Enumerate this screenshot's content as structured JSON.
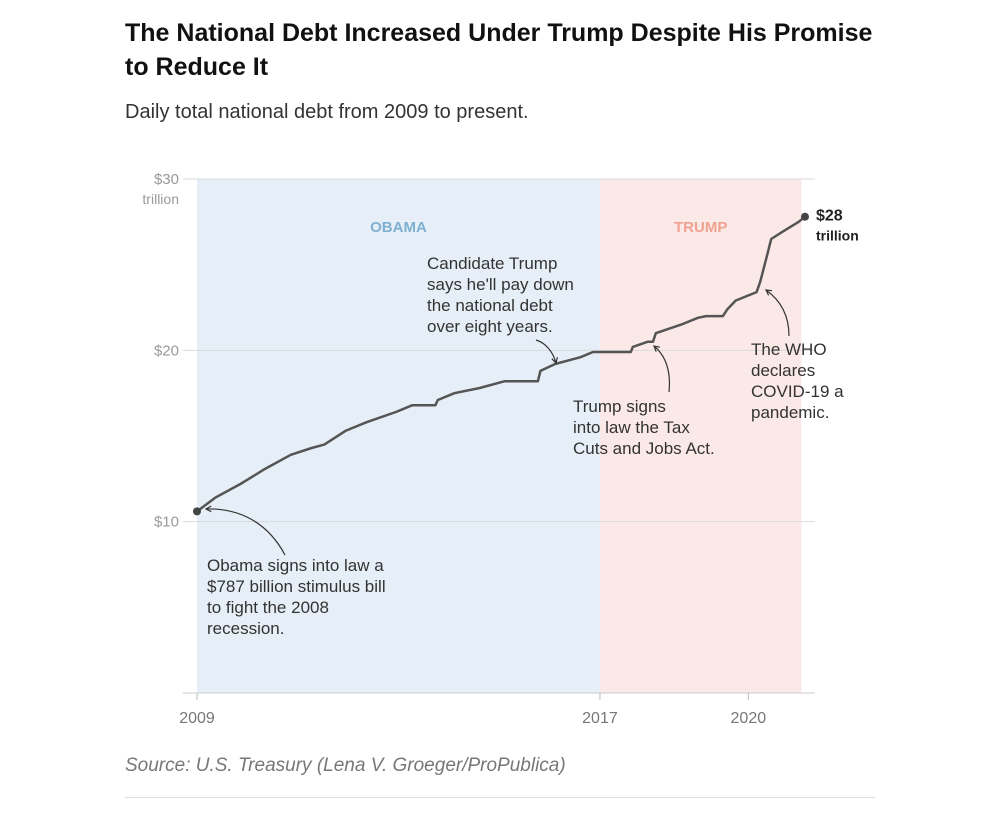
{
  "title": "The National Debt Increased Under Trump Despite His Promise to Reduce It",
  "subtitle": "Daily total national debt from 2009 to present.",
  "source": "Source: U.S. Treasury (Lena V. Groeger/ProPublica)",
  "chart_data": {
    "type": "line",
    "y_unit": "trillion",
    "ylim": [
      0,
      30
    ],
    "xlim": [
      "2009-01-20",
      "2021-02-15"
    ],
    "y_ticks": [
      {
        "value": 30,
        "label": "$30"
      },
      {
        "value": 20,
        "label": "$20"
      },
      {
        "value": 10,
        "label": "$10"
      }
    ],
    "y_tick_unit_label": "trillion",
    "x_ticks": [
      {
        "value": "2009-01-20",
        "label": "2009"
      },
      {
        "value": "2017-01-20",
        "label": "2017"
      },
      {
        "value": "2020-01-01",
        "label": "2020"
      }
    ],
    "grid": true,
    "regions": [
      {
        "label": "OBAMA",
        "start": "2009-01-20",
        "end": "2017-01-20",
        "color": "#e6eff7",
        "label_color": "#7fb0d2"
      },
      {
        "label": "TRUMP",
        "start": "2017-01-20",
        "end": "2021-01-20",
        "color": "#fbe9e7",
        "label_color": "#f0a291"
      }
    ],
    "series": [
      {
        "color": "#555555",
        "points": [
          [
            "2009-01-20",
            10.6
          ],
          [
            "2009-06-01",
            11.4
          ],
          [
            "2009-12-01",
            12.2
          ],
          [
            "2010-06-01",
            13.1
          ],
          [
            "2010-12-01",
            13.9
          ],
          [
            "2011-05-01",
            14.3
          ],
          [
            "2011-08-01",
            14.5
          ],
          [
            "2012-01-01",
            15.3
          ],
          [
            "2012-06-01",
            15.8
          ],
          [
            "2013-01-01",
            16.4
          ],
          [
            "2013-05-01",
            16.8
          ],
          [
            "2013-10-15",
            16.8
          ],
          [
            "2013-11-01",
            17.1
          ],
          [
            "2014-03-01",
            17.5
          ],
          [
            "2014-09-01",
            17.8
          ],
          [
            "2015-03-01",
            18.2
          ],
          [
            "2015-10-28",
            18.2
          ],
          [
            "2015-11-15",
            18.8
          ],
          [
            "2016-03-01",
            19.2
          ],
          [
            "2016-09-01",
            19.6
          ],
          [
            "2016-12-01",
            19.9
          ],
          [
            "2017-01-20",
            19.9
          ],
          [
            "2017-09-01",
            19.9
          ],
          [
            "2017-09-15",
            20.2
          ],
          [
            "2017-12-31",
            20.5
          ],
          [
            "2018-02-09",
            20.5
          ],
          [
            "2018-03-01",
            21.0
          ],
          [
            "2018-09-01",
            21.5
          ],
          [
            "2018-12-31",
            21.9
          ],
          [
            "2019-03-01",
            22.0
          ],
          [
            "2019-07-01",
            22.0
          ],
          [
            "2019-08-02",
            22.4
          ],
          [
            "2019-10-01",
            22.9
          ],
          [
            "2019-12-31",
            23.2
          ],
          [
            "2020-03-01",
            23.4
          ],
          [
            "2020-03-27",
            24.0
          ],
          [
            "2020-05-15",
            25.5
          ],
          [
            "2020-06-15",
            26.5
          ],
          [
            "2020-09-01",
            26.9
          ],
          [
            "2020-12-31",
            27.5
          ],
          [
            "2021-02-15",
            27.8
          ]
        ]
      }
    ],
    "end_label": {
      "value": "$28",
      "unit": "trillion"
    },
    "annotations": [
      {
        "lines": [
          "Obama signs into law a",
          "$787 billion stimulus bill",
          "to fight the 2008",
          "recession."
        ],
        "point": [
          "2009-02-17",
          10.7
        ]
      },
      {
        "lines": [
          "Candidate Trump",
          "says he'll pay down",
          "the national debt",
          "over eight years."
        ],
        "point": [
          "2016-04-01",
          19.3
        ]
      },
      {
        "lines": [
          "Trump signs",
          "into law the Tax",
          "Cuts and Jobs Act."
        ],
        "point": [
          "2017-12-22",
          20.4
        ]
      },
      {
        "lines": [
          "The WHO",
          "declares",
          "COVID-19 a",
          "pandemic."
        ],
        "point": [
          "2020-03-11",
          23.6
        ]
      }
    ]
  }
}
